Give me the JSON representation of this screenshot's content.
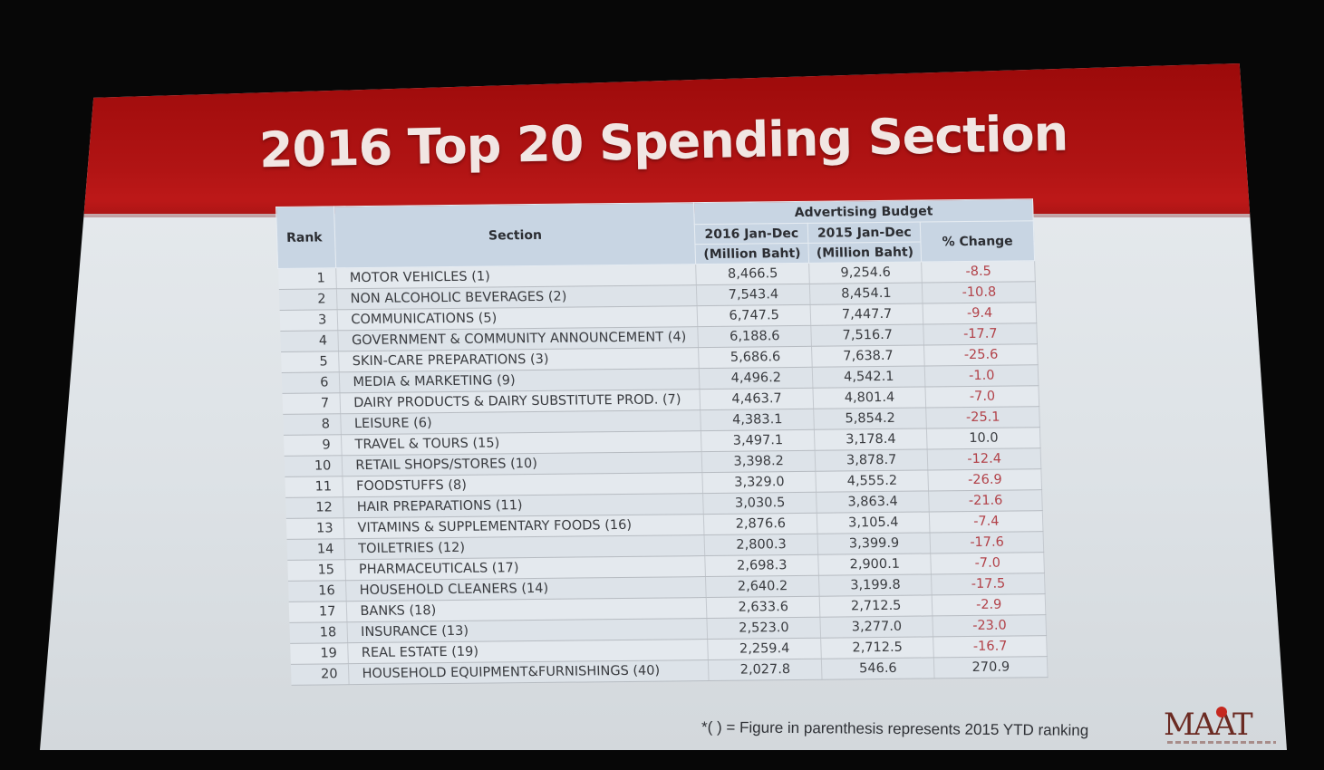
{
  "slide": {
    "title": "2016 Top 20 Spending Section",
    "footnote": "*( ) = Figure in parenthesis represents 2015 YTD ranking",
    "logo_text": "MAAT",
    "colors": {
      "banner": "#b11414",
      "negative": "#b24249",
      "header_bg": "#c8d5e3"
    }
  },
  "table": {
    "headers": {
      "rank": "Rank",
      "section": "Section",
      "group": "Advertising Budget",
      "col2016_line1": "2016 Jan-Dec",
      "col2016_line2": "(Million Baht)",
      "col2015_line1": "2015 Jan-Dec",
      "col2015_line2": "(Million Baht)",
      "change": "% Change"
    },
    "rows": [
      {
        "rank": "1",
        "section": "MOTOR VEHICLES (1)",
        "y2016": "8,466.5",
        "y2015": "9,254.6",
        "change": "-8.5"
      },
      {
        "rank": "2",
        "section": "NON ALCOHOLIC BEVERAGES (2)",
        "y2016": "7,543.4",
        "y2015": "8,454.1",
        "change": "-10.8"
      },
      {
        "rank": "3",
        "section": "COMMUNICATIONS (5)",
        "y2016": "6,747.5",
        "y2015": "7,447.7",
        "change": "-9.4"
      },
      {
        "rank": "4",
        "section": "GOVERNMENT & COMMUNITY ANNOUNCEMENT (4)",
        "y2016": "6,188.6",
        "y2015": "7,516.7",
        "change": "-17.7"
      },
      {
        "rank": "5",
        "section": "SKIN-CARE PREPARATIONS (3)",
        "y2016": "5,686.6",
        "y2015": "7,638.7",
        "change": "-25.6"
      },
      {
        "rank": "6",
        "section": "MEDIA & MARKETING (9)",
        "y2016": "4,496.2",
        "y2015": "4,542.1",
        "change": "-1.0"
      },
      {
        "rank": "7",
        "section": "DAIRY PRODUCTS & DAIRY SUBSTITUTE PROD. (7)",
        "y2016": "4,463.7",
        "y2015": "4,801.4",
        "change": "-7.0"
      },
      {
        "rank": "8",
        "section": "LEISURE (6)",
        "y2016": "4,383.1",
        "y2015": "5,854.2",
        "change": "-25.1"
      },
      {
        "rank": "9",
        "section": "TRAVEL & TOURS (15)",
        "y2016": "3,497.1",
        "y2015": "3,178.4",
        "change": "10.0"
      },
      {
        "rank": "10",
        "section": "RETAIL SHOPS/STORES (10)",
        "y2016": "3,398.2",
        "y2015": "3,878.7",
        "change": "-12.4"
      },
      {
        "rank": "11",
        "section": "FOODSTUFFS (8)",
        "y2016": "3,329.0",
        "y2015": "4,555.2",
        "change": "-26.9"
      },
      {
        "rank": "12",
        "section": "HAIR PREPARATIONS (11)",
        "y2016": "3,030.5",
        "y2015": "3,863.4",
        "change": "-21.6"
      },
      {
        "rank": "13",
        "section": "VITAMINS & SUPPLEMENTARY FOODS (16)",
        "y2016": "2,876.6",
        "y2015": "3,105.4",
        "change": "-7.4"
      },
      {
        "rank": "14",
        "section": "TOILETRIES (12)",
        "y2016": "2,800.3",
        "y2015": "3,399.9",
        "change": "-17.6"
      },
      {
        "rank": "15",
        "section": "PHARMACEUTICALS (17)",
        "y2016": "2,698.3",
        "y2015": "2,900.1",
        "change": "-7.0"
      },
      {
        "rank": "16",
        "section": "HOUSEHOLD CLEANERS (14)",
        "y2016": "2,640.2",
        "y2015": "3,199.8",
        "change": "-17.5"
      },
      {
        "rank": "17",
        "section": "BANKS (18)",
        "y2016": "2,633.6",
        "y2015": "2,712.5",
        "change": "-2.9"
      },
      {
        "rank": "18",
        "section": "INSURANCE (13)",
        "y2016": "2,523.0",
        "y2015": "3,277.0",
        "change": "-23.0"
      },
      {
        "rank": "19",
        "section": "REAL ESTATE (19)",
        "y2016": "2,259.4",
        "y2015": "2,712.5",
        "change": "-16.7"
      },
      {
        "rank": "20",
        "section": "HOUSEHOLD EQUIPMENT&FURNISHINGS (40)",
        "y2016": "2,027.8",
        "y2015": "546.6",
        "change": "270.9"
      }
    ]
  }
}
